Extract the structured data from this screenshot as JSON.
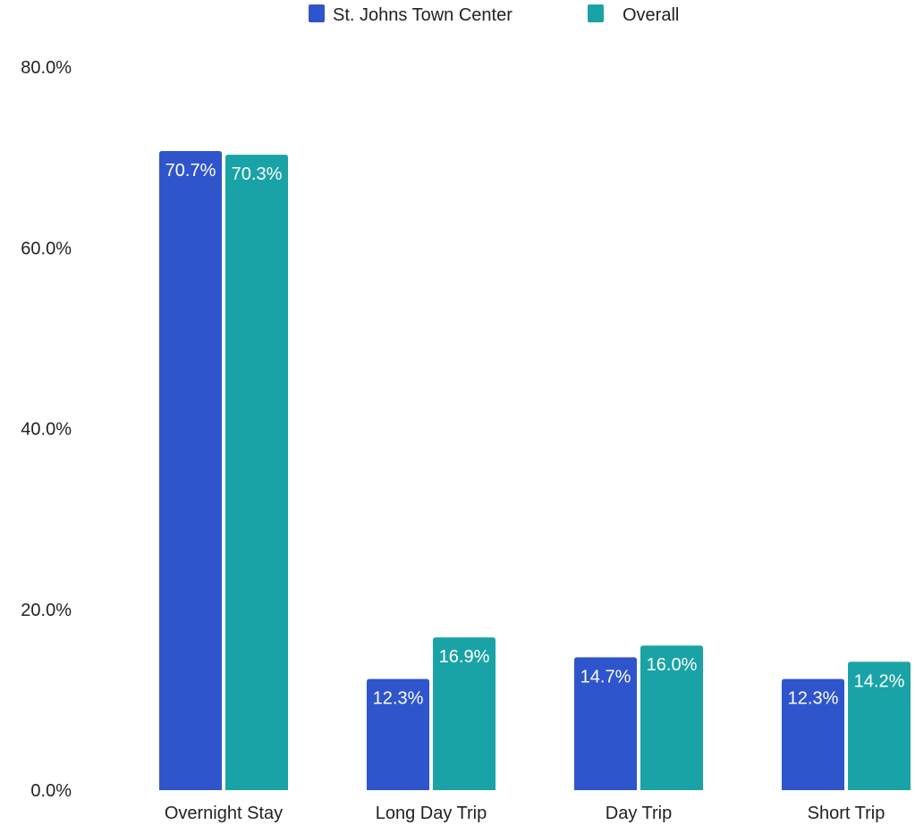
{
  "chart_data": {
    "type": "bar",
    "categories": [
      "Overnight Stay",
      "Long Day Trip",
      "Day Trip",
      "Short Trip"
    ],
    "series": [
      {
        "name": "St. Johns Town Center",
        "color": "#2E55CC",
        "values": [
          70.7,
          12.3,
          14.7,
          12.3
        ],
        "labels": [
          "70.7%",
          "12.3%",
          "14.7%",
          "12.3%"
        ]
      },
      {
        "name": "Overall",
        "color": "#1AA3A6",
        "values": [
          70.3,
          16.9,
          16.0,
          14.2
        ],
        "labels": [
          "70.3%",
          "16.9%",
          "16.0%",
          "14.2%"
        ]
      }
    ],
    "yticks": [
      0,
      20,
      40,
      60,
      80
    ],
    "ytick_labels": [
      "0.0%",
      "20.0%",
      "40.0%",
      "60.0%",
      "80.0%"
    ],
    "ylim": [
      0,
      80
    ],
    "legend_position": "top",
    "grid": false
  }
}
